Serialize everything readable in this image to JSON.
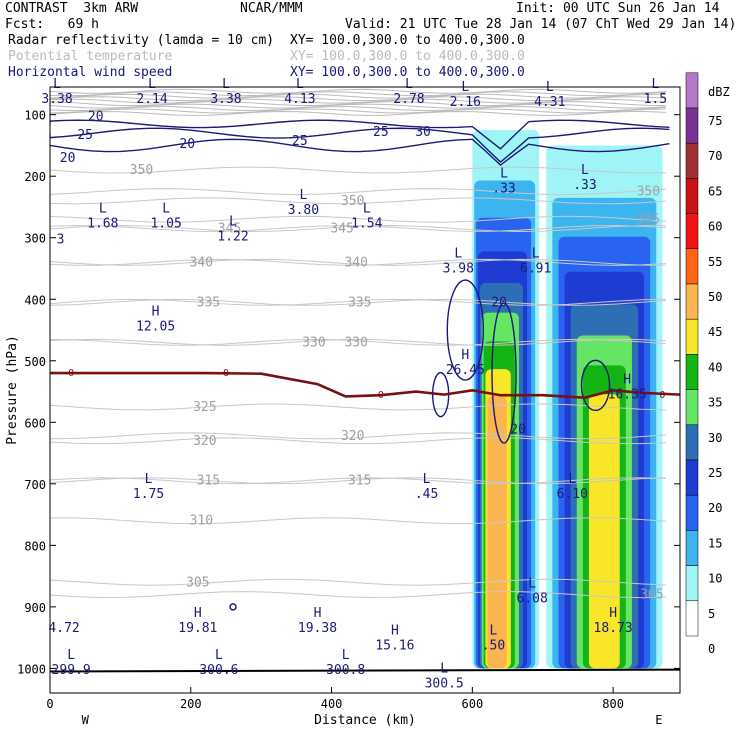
{
  "header": {
    "line1_left": "CONTRAST  3km ARW",
    "line1_center": "NCAR/MMM",
    "line1_right": "Init: 00 UTC Sun 26 Jan 14",
    "line2_left": "Fcst:   69 h",
    "line2_right": "Valid: 21 UTC Tue 28 Jan 14 (07 ChT Wed 29 Jan 14)",
    "fields": [
      {
        "name": "Radar reflectivity (lamda = 10 cm)",
        "xy": "XY= 100.0,300.0 to 400.0,300.0",
        "color": "#000000"
      },
      {
        "name": "Potential temperature",
        "xy": "XY= 100.0,300.0 to 400.0,300.0",
        "color": "#bbbbbb"
      },
      {
        "name": "Horizontal wind speed",
        "xy": "XY= 100.0,300.0 to 400.0,300.0",
        "color": "#1a1a7a"
      }
    ]
  },
  "chart_data": {
    "type": "cross-section",
    "xlabel": "Distance (km)",
    "ylabel": "Pressure (hPa)",
    "xlim": [
      0,
      895
    ],
    "ylim": [
      1040,
      55
    ],
    "x_ticks": [
      0,
      200,
      400,
      600,
      800
    ],
    "y_ticks": [
      100,
      200,
      300,
      400,
      500,
      600,
      700,
      800,
      900,
      1000
    ],
    "x_end_labels": {
      "left": "W",
      "right": "E"
    },
    "colorbar": {
      "unit": "dBZ",
      "levels": [
        0,
        5,
        10,
        15,
        20,
        25,
        30,
        35,
        40,
        45,
        50,
        55,
        60,
        65,
        70,
        75
      ],
      "colors": [
        "#ffffff",
        "#9ff5f5",
        "#3cb4f0",
        "#2864f0",
        "#1e3cd2",
        "#2e6eb4",
        "#64e664",
        "#14b414",
        "#fae628",
        "#fab450",
        "#ff6414",
        "#f01414",
        "#c81414",
        "#a03232",
        "#783296",
        "#b478c8"
      ]
    },
    "reflectivity_columns": [
      {
        "x0": 600,
        "x1": 695,
        "top": 125,
        "base": 1000,
        "peak_dbz": 45
      },
      {
        "x0": 705,
        "x1": 870,
        "top": 150,
        "base": 1000,
        "peak_dbz": 40
      }
    ],
    "theta_contours": [
      {
        "label": "350",
        "x": 130,
        "p": 190
      },
      {
        "label": "350",
        "x": 430,
        "p": 240
      },
      {
        "label": "350",
        "x": 850,
        "p": 225
      },
      {
        "label": "345",
        "x": 255,
        "p": 285
      },
      {
        "label": "345",
        "x": 415,
        "p": 285
      },
      {
        "label": "345",
        "x": 850,
        "p": 270
      },
      {
        "label": "340",
        "x": 215,
        "p": 340
      },
      {
        "label": "340",
        "x": 435,
        "p": 340
      },
      {
        "label": "335",
        "x": 225,
        "p": 405
      },
      {
        "label": "335",
        "x": 440,
        "p": 405
      },
      {
        "label": "330",
        "x": 375,
        "p": 470
      },
      {
        "label": "330",
        "x": 435,
        "p": 470
      },
      {
        "label": "325",
        "x": 220,
        "p": 575
      },
      {
        "label": "320",
        "x": 220,
        "p": 630
      },
      {
        "label": "320",
        "x": 430,
        "p": 622
      },
      {
        "label": "315",
        "x": 225,
        "p": 695
      },
      {
        "label": "315",
        "x": 440,
        "p": 695
      },
      {
        "label": "310",
        "x": 215,
        "p": 760
      },
      {
        "label": "305",
        "x": 210,
        "p": 860
      },
      {
        "label": "305",
        "x": 855,
        "p": 880
      }
    ],
    "wind_contour_labels": [
      {
        "label": "20",
        "x": 65,
        "p": 103
      },
      {
        "label": "25",
        "x": 50,
        "p": 133
      },
      {
        "label": "20",
        "x": 25,
        "p": 170
      },
      {
        "label": "20",
        "x": 195,
        "p": 148
      },
      {
        "label": "25",
        "x": 355,
        "p": 143
      },
      {
        "label": "25",
        "x": 470,
        "p": 128
      },
      {
        "label": "30",
        "x": 530,
        "p": 128
      },
      {
        "label": "20",
        "x": 638,
        "p": 405
      },
      {
        "label": "20",
        "x": 665,
        "p": 612
      }
    ],
    "zero_line": {
      "label": "0",
      "points": [
        [
          0,
          520
        ],
        [
          100,
          520
        ],
        [
          220,
          520
        ],
        [
          300,
          521
        ],
        [
          380,
          538
        ],
        [
          420,
          558
        ],
        [
          470,
          556
        ],
        [
          520,
          550
        ],
        [
          560,
          555
        ],
        [
          600,
          548
        ],
        [
          640,
          556
        ],
        [
          700,
          556
        ],
        [
          760,
          560
        ],
        [
          800,
          548
        ],
        [
          840,
          552
        ],
        [
          895,
          555
        ]
      ]
    },
    "extrema": [
      {
        "type": "L",
        "x": 10,
        "p": 60,
        "value": "3.38"
      },
      {
        "type": "L",
        "x": 145,
        "p": 60,
        "value": "2.14"
      },
      {
        "type": "L",
        "x": 250,
        "p": 60,
        "value": "3.38"
      },
      {
        "type": "L",
        "x": 355,
        "p": 60,
        "value": "4.13"
      },
      {
        "type": "L",
        "x": 510,
        "p": 60,
        "value": "2.78"
      },
      {
        "type": "L",
        "x": 590,
        "p": 65,
        "value": "2.16"
      },
      {
        "type": "L",
        "x": 710,
        "p": 65,
        "value": "4.31"
      },
      {
        "type": "L",
        "x": 860,
        "p": 60,
        "value": "1.5"
      },
      {
        "type": "",
        "x": 15,
        "p": 288,
        "value": "3"
      },
      {
        "type": "L",
        "x": 75,
        "p": 262,
        "value": "1.68"
      },
      {
        "type": "L",
        "x": 165,
        "p": 262,
        "value": "1.05"
      },
      {
        "type": "L",
        "x": 260,
        "p": 283,
        "value": "1.22"
      },
      {
        "type": "L",
        "x": 360,
        "p": 240,
        "value": "3.80"
      },
      {
        "type": "L",
        "x": 450,
        "p": 262,
        "value": "1.54"
      },
      {
        "type": "L",
        "x": 580,
        "p": 335,
        "value": "3.98"
      },
      {
        "type": "L",
        "x": 645,
        "p": 205,
        "value": ".33"
      },
      {
        "type": "L",
        "x": 690,
        "p": 335,
        "value": "6.91"
      },
      {
        "type": "L",
        "x": 760,
        "p": 200,
        "value": ".33"
      },
      {
        "type": "H",
        "x": 150,
        "p": 430,
        "value": "12.05"
      },
      {
        "type": "H",
        "x": 590,
        "p": 500,
        "value": "26.45"
      },
      {
        "type": "H",
        "x": 820,
        "p": 540,
        "value": "16.35"
      },
      {
        "type": "L",
        "x": 140,
        "p": 702,
        "value": "1.75"
      },
      {
        "type": "L",
        "x": 535,
        "p": 702,
        "value": ".45"
      },
      {
        "type": "L",
        "x": 742,
        "p": 702,
        "value": "6.10"
      },
      {
        "type": "L",
        "x": 685,
        "p": 872,
        "value": "6.08"
      },
      {
        "type": "",
        "x": 20,
        "p": 920,
        "value": "4.72"
      },
      {
        "type": "H",
        "x": 210,
        "p": 920,
        "value": "19.81"
      },
      {
        "type": "H",
        "x": 380,
        "p": 920,
        "value": "19.38"
      },
      {
        "type": "H",
        "x": 490,
        "p": 948,
        "value": "15.16"
      },
      {
        "type": "H",
        "x": 800,
        "p": 920,
        "value": "18.73"
      },
      {
        "type": "L",
        "x": 630,
        "p": 948,
        "value": ".50"
      },
      {
        "type": "L",
        "x": 30,
        "p": 988,
        "value": "299.9"
      },
      {
        "type": "L",
        "x": 240,
        "p": 988,
        "value": "300.6"
      },
      {
        "type": "L",
        "x": 420,
        "p": 988,
        "value": "300.8"
      },
      {
        "type": "L",
        "x": 560,
        "p": 1010,
        "value": "300.5"
      }
    ]
  }
}
